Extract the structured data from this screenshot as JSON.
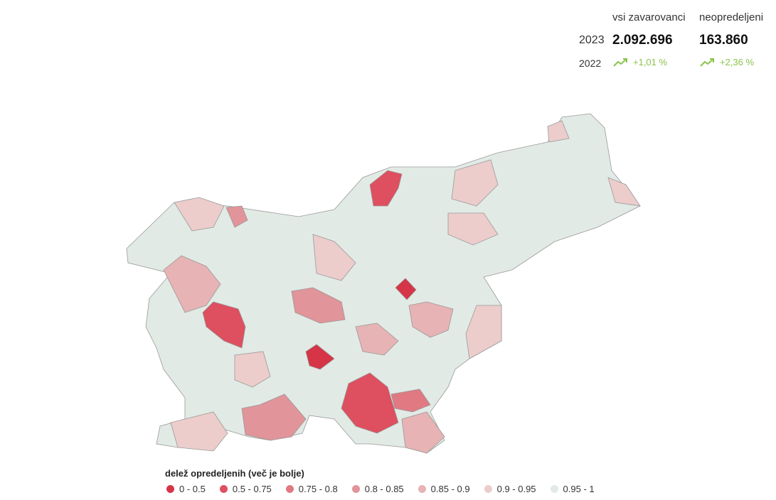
{
  "summary": {
    "columns": [
      "vsi zavarovanci",
      "neopredeljeni"
    ],
    "rows": [
      {
        "label": "2023",
        "values": [
          "2.092.696",
          "163.860"
        ]
      },
      {
        "label": "2022",
        "values": [
          "+1,01 %",
          "+2,36 %"
        ]
      }
    ]
  },
  "legend": {
    "title": "delež opredeljenih (več je bolje)",
    "items": [
      {
        "label": "0 - 0.5",
        "color": "#d63447"
      },
      {
        "label": "0.5 - 0.75",
        "color": "#de4f5f"
      },
      {
        "label": "0.75 - 0.8",
        "color": "#e07982"
      },
      {
        "label": "0.8 - 0.85",
        "color": "#e19499"
      },
      {
        "label": "0.85 - 0.9",
        "color": "#e7b3b4"
      },
      {
        "label": "0.9 - 0.95",
        "color": "#eccdcc"
      },
      {
        "label": "0.95 - 1",
        "color": "#e2eae5"
      }
    ]
  }
}
